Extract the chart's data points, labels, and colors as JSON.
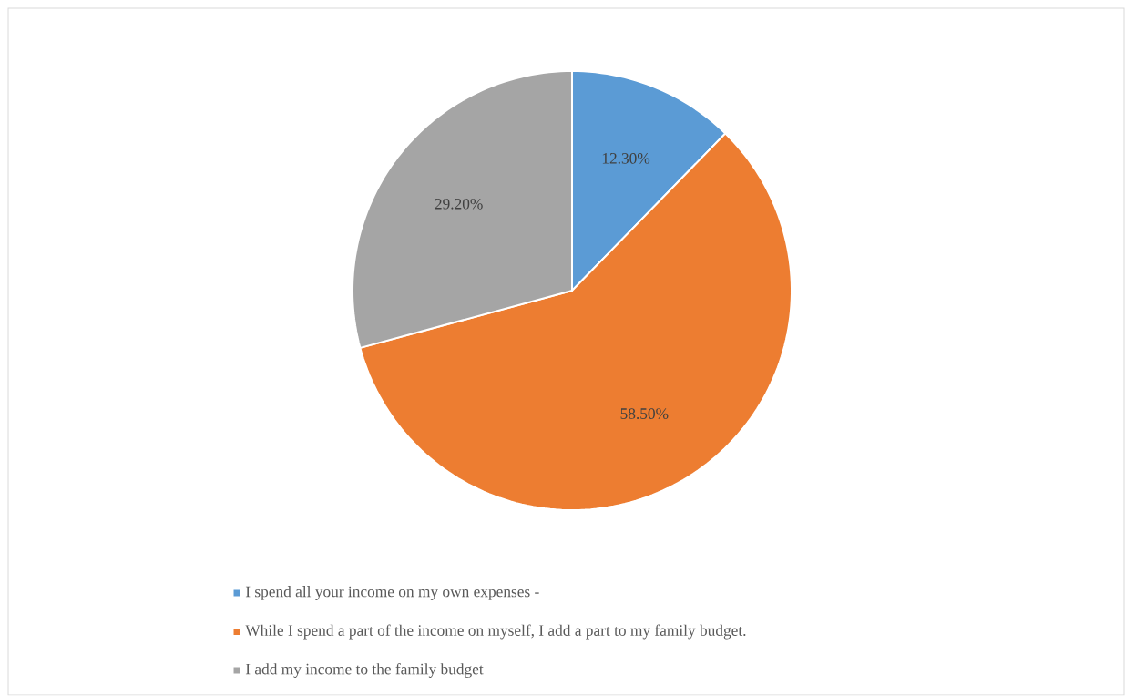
{
  "chart_data": {
    "type": "pie",
    "categories": [
      "I spend all your income on my own expenses -",
      "While I spend a part of the income on myself, I add a part to my family budget.",
      "I add my income to the family budget"
    ],
    "values": [
      12.3,
      58.5,
      29.2
    ],
    "colors": [
      "#5b9bd5",
      "#ed7d31",
      "#a5a5a5"
    ],
    "value_labels": [
      "12.30%",
      "58.50%",
      "29.20%"
    ],
    "legend": "bottom"
  }
}
